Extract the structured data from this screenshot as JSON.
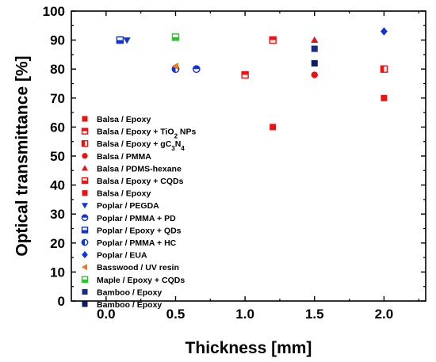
{
  "chart_data": {
    "type": "scatter",
    "title": "",
    "xlabel": "Thickness [mm]",
    "ylabel": "Optical transmittance [%]",
    "xlim": [
      -0.25,
      2.3
    ],
    "ylim": [
      0,
      100
    ],
    "xticks": [
      "0.0",
      "0.5",
      "1.0",
      "1.5",
      "2.0"
    ],
    "xtick_values": [
      0,
      0.5,
      1,
      1.5,
      2
    ],
    "yticks": [
      "0",
      "10",
      "20",
      "30",
      "40",
      "50",
      "60",
      "70",
      "80",
      "90",
      "100"
    ],
    "ytick_values": [
      0,
      10,
      20,
      30,
      40,
      50,
      60,
      70,
      80,
      90,
      100
    ],
    "grid": false,
    "legend_position": "bottom-left",
    "series": [
      {
        "name": "Balsa / Epoxy",
        "marker": "square-filled",
        "color": "#ee1111",
        "points": [
          [
            1.2,
            60
          ]
        ]
      },
      {
        "name": "Balsa / Epoxy + TiO2 NPs",
        "sub": "2",
        "name_parts": [
          "Balsa / Epoxy + TiO",
          "2",
          " NPs"
        ],
        "marker": "square-tophalf",
        "color": "#ee1111",
        "points": [
          [
            1.0,
            78
          ],
          [
            1.2,
            90
          ]
        ]
      },
      {
        "name": "Balsa / Epoxy + gC3N4",
        "name_parts": [
          "Balsa / Epoxy + gC",
          "3",
          "N",
          "4",
          ""
        ],
        "marker": "square-lefthalf",
        "color": "#ee1111",
        "points": [
          [
            2.0,
            80
          ]
        ]
      },
      {
        "name": "Balsa / PMMA",
        "marker": "circle-filled",
        "color": "#ee1111",
        "points": [
          [
            1.5,
            78
          ]
        ]
      },
      {
        "name": "Balsa / PDMS-hexane",
        "marker": "triangle-up",
        "color": "#ee1111",
        "points": [
          [
            1.5,
            90
          ]
        ]
      },
      {
        "name": "Balsa / Epoxy + CQDs",
        "marker": "square-bottomhalf",
        "color": "#ee1111",
        "points": []
      },
      {
        "name": "Balsa / Epoxy",
        "marker": "square-filled",
        "color": "#ee1111",
        "points": [
          [
            2.0,
            70
          ]
        ]
      },
      {
        "name": "Poplar / PEGDA",
        "marker": "triangle-down",
        "color": "#1133dd",
        "points": [
          [
            0.15,
            90
          ]
        ]
      },
      {
        "name": "Poplar / PMMA + PD",
        "marker": "circle-tophalf",
        "color": "#1133dd",
        "points": [
          [
            0.65,
            80
          ]
        ]
      },
      {
        "name": "Poplar / Epoxy + QDs",
        "marker": "square-bottomhalf",
        "color": "#1133dd",
        "points": [
          [
            0.1,
            90
          ]
        ]
      },
      {
        "name": "Poplar / PMMA + HC",
        "marker": "circle-lefthalf",
        "color": "#1133dd",
        "points": [
          [
            0.5,
            80
          ]
        ]
      },
      {
        "name": "Poplar / EUA",
        "marker": "diamond",
        "color": "#1133dd",
        "points": [
          [
            2.0,
            93
          ]
        ]
      },
      {
        "name": "Basswood / UV resin",
        "marker": "triangle-left",
        "color": "#ee7722",
        "points": [
          [
            0.5,
            81
          ]
        ]
      },
      {
        "name": "Maple / Epoxy + CQDs",
        "marker": "square-bottomhalf",
        "color": "#22cc22",
        "points": [
          [
            0.5,
            91
          ]
        ]
      },
      {
        "name": "Bamboo / Epoxy",
        "marker": "square-filled",
        "color": "#1a2b88",
        "points": [
          [
            1.5,
            87
          ]
        ]
      },
      {
        "name": "Bamboo / Epoxy",
        "marker": "square-filled",
        "color": "#0d1a66",
        "points": [
          [
            1.5,
            82
          ]
        ]
      }
    ]
  }
}
